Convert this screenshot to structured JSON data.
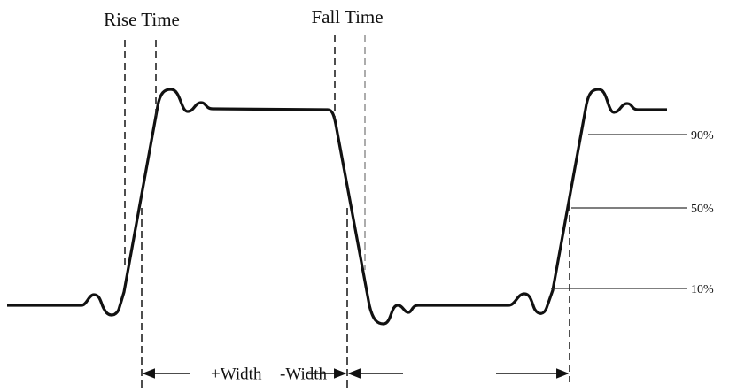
{
  "header": {
    "rise_time": "Rise Time",
    "fall_time": "Fall Time"
  },
  "levels": [
    "90%",
    "50%",
    "10%"
  ],
  "widths": {
    "positive": "+Width",
    "negative": "-Width"
  }
}
